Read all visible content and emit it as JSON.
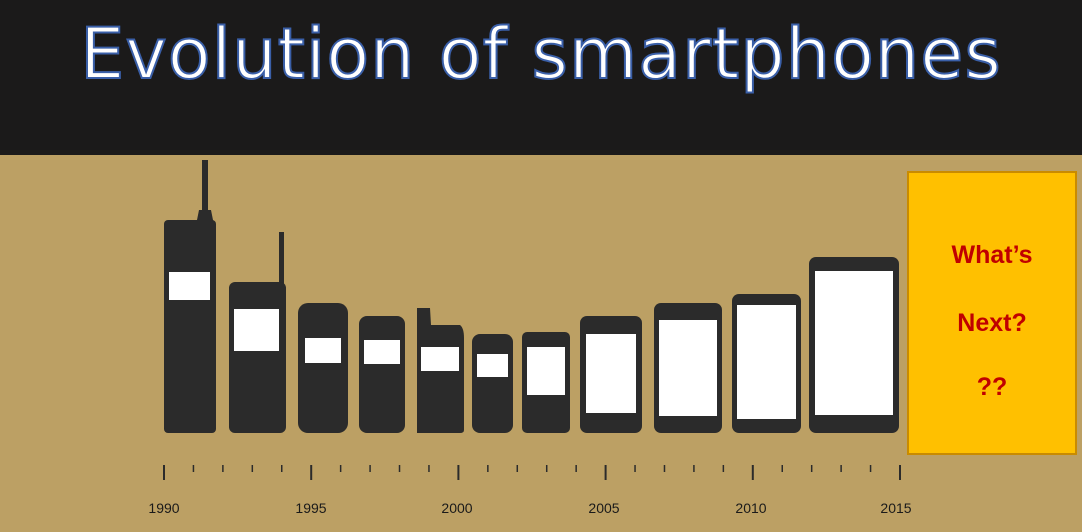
{
  "header": {
    "title": "Evolution of smartphones"
  },
  "next_box": {
    "line1": "What’s",
    "line2": "Next?",
    "line3": "??"
  },
  "timeline": {
    "years": [
      "1990",
      "1995",
      "2000",
      "2005",
      "2010",
      "2015"
    ]
  },
  "colors": {
    "header_bg": "#1b1a1a",
    "background": "#bca064",
    "phone": "#2b2b2b",
    "screen": "#ffffff",
    "next_box": "#ffc000",
    "next_text": "#c00000"
  }
}
